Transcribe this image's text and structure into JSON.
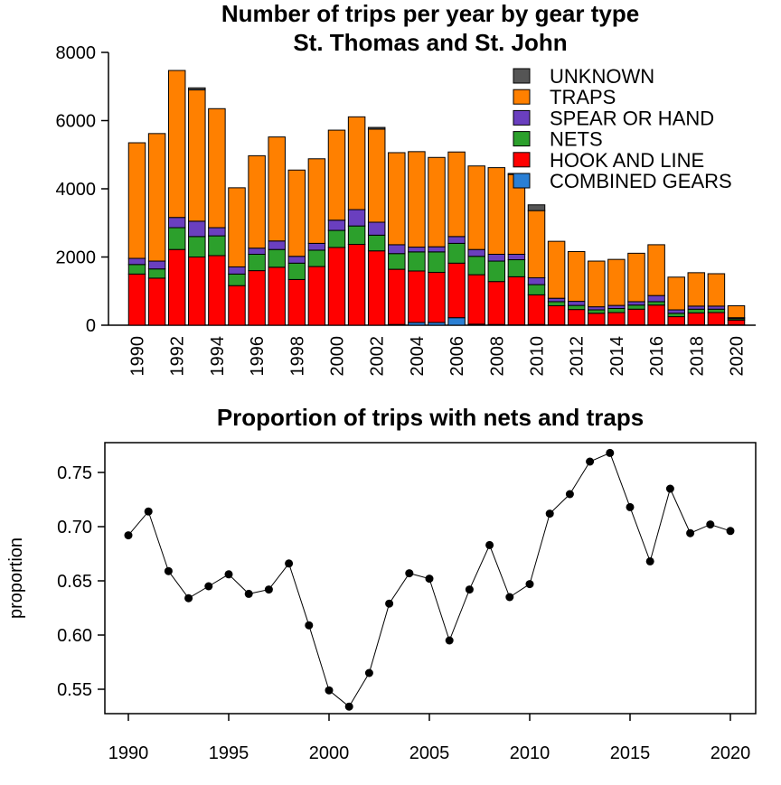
{
  "chart_data": [
    {
      "type": "bar",
      "stacked": true,
      "title": "Number of trips per year by gear type",
      "subtitle": "St. Thomas and St. John",
      "xlabel": "",
      "ylabel": "",
      "ylim": [
        0,
        8000
      ],
      "yticks": [
        0,
        2000,
        4000,
        6000,
        8000
      ],
      "xtick_labels": [
        "1990",
        "1992",
        "1994",
        "1996",
        "1998",
        "2000",
        "2002",
        "2004",
        "2006",
        "2008",
        "2010",
        "2012",
        "2014",
        "2016",
        "2018",
        "2020"
      ],
      "categories": [
        1990,
        1991,
        1992,
        1993,
        1994,
        1995,
        1996,
        1997,
        1998,
        1999,
        2000,
        2001,
        2002,
        2003,
        2004,
        2005,
        2006,
        2007,
        2008,
        2009,
        2010,
        2011,
        2012,
        2013,
        2014,
        2015,
        2016,
        2017,
        2018,
        2019,
        2020
      ],
      "legend_position": "top-right",
      "series": [
        {
          "name": "COMBINED GEARS",
          "color": "#2a7fd4",
          "values": [
            0,
            0,
            0,
            0,
            0,
            0,
            0,
            0,
            0,
            0,
            0,
            0,
            0,
            20,
            80,
            80,
            220,
            30,
            20,
            10,
            20,
            10,
            10,
            10,
            10,
            10,
            10,
            10,
            10,
            10,
            10
          ]
        },
        {
          "name": "HOOK AND LINE",
          "color": "#ff0000",
          "values": [
            1500,
            1380,
            2220,
            2000,
            2040,
            1160,
            1600,
            1700,
            1340,
            1720,
            2280,
            2370,
            2180,
            1620,
            1510,
            1470,
            1600,
            1450,
            1260,
            1410,
            870,
            560,
            450,
            340,
            360,
            460,
            580,
            240,
            350,
            360,
            140
          ]
        },
        {
          "name": "NETS",
          "color": "#2ca02c",
          "values": [
            280,
            270,
            640,
            600,
            580,
            340,
            480,
            520,
            480,
            480,
            500,
            540,
            460,
            460,
            560,
            600,
            580,
            540,
            600,
            500,
            300,
            120,
            120,
            100,
            120,
            120,
            100,
            100,
            110,
            100,
            40
          ]
        },
        {
          "name": "SPEAR OR HAND",
          "color": "#6a3fbf",
          "values": [
            180,
            230,
            300,
            450,
            240,
            210,
            180,
            250,
            200,
            200,
            300,
            480,
            380,
            260,
            140,
            150,
            200,
            200,
            200,
            160,
            200,
            100,
            120,
            90,
            90,
            100,
            180,
            100,
            90,
            90,
            30
          ]
        },
        {
          "name": "TRAPS",
          "color": "#ff8000",
          "values": [
            3390,
            3740,
            4310,
            3850,
            3490,
            2320,
            2710,
            3050,
            2530,
            2480,
            2640,
            2720,
            2730,
            2700,
            2800,
            2620,
            2480,
            2450,
            2540,
            2340,
            1970,
            1670,
            1460,
            1340,
            1350,
            1420,
            1490,
            960,
            980,
            950,
            350
          ]
        },
        {
          "name": "UNKNOWN",
          "color": "#555555",
          "values": [
            0,
            0,
            0,
            60,
            0,
            0,
            0,
            0,
            0,
            0,
            0,
            0,
            50,
            0,
            0,
            0,
            0,
            0,
            0,
            30,
            170,
            0,
            0,
            0,
            0,
            0,
            0,
            0,
            0,
            0,
            0
          ]
        }
      ],
      "legend_order": [
        "UNKNOWN",
        "TRAPS",
        "SPEAR OR HAND",
        "NETS",
        "HOOK AND LINE",
        "COMBINED GEARS"
      ]
    },
    {
      "type": "line",
      "title": "Proportion of trips with nets and traps",
      "xlabel": "",
      "ylabel": "proportion",
      "xlim": [
        1990,
        2020
      ],
      "ylim": [
        0.52,
        0.78
      ],
      "xticks": [
        1990,
        1995,
        2000,
        2005,
        2010,
        2015,
        2020
      ],
      "yticks": [
        0.55,
        0.6,
        0.65,
        0.7,
        0.75
      ],
      "ytick_labels": [
        "0.55",
        "0.60",
        "0.65",
        "0.70",
        "0.75"
      ],
      "series": [
        {
          "color": "#000000",
          "x": [
            1990,
            1991,
            1992,
            1993,
            1994,
            1995,
            1996,
            1997,
            1998,
            1999,
            2000,
            2001,
            2002,
            2003,
            2004,
            2005,
            2006,
            2007,
            2008,
            2009,
            2010,
            2011,
            2012,
            2013,
            2014,
            2015,
            2016,
            2017,
            2018,
            2019,
            2020
          ],
          "y": [
            0.692,
            0.714,
            0.659,
            0.634,
            0.645,
            0.656,
            0.638,
            0.642,
            0.666,
            0.609,
            0.549,
            0.534,
            0.565,
            0.629,
            0.657,
            0.652,
            0.595,
            0.642,
            0.683,
            0.635,
            0.647,
            0.712,
            0.73,
            0.76,
            0.768,
            0.718,
            0.668,
            0.735,
            0.694,
            0.702,
            0.696
          ]
        }
      ]
    }
  ]
}
